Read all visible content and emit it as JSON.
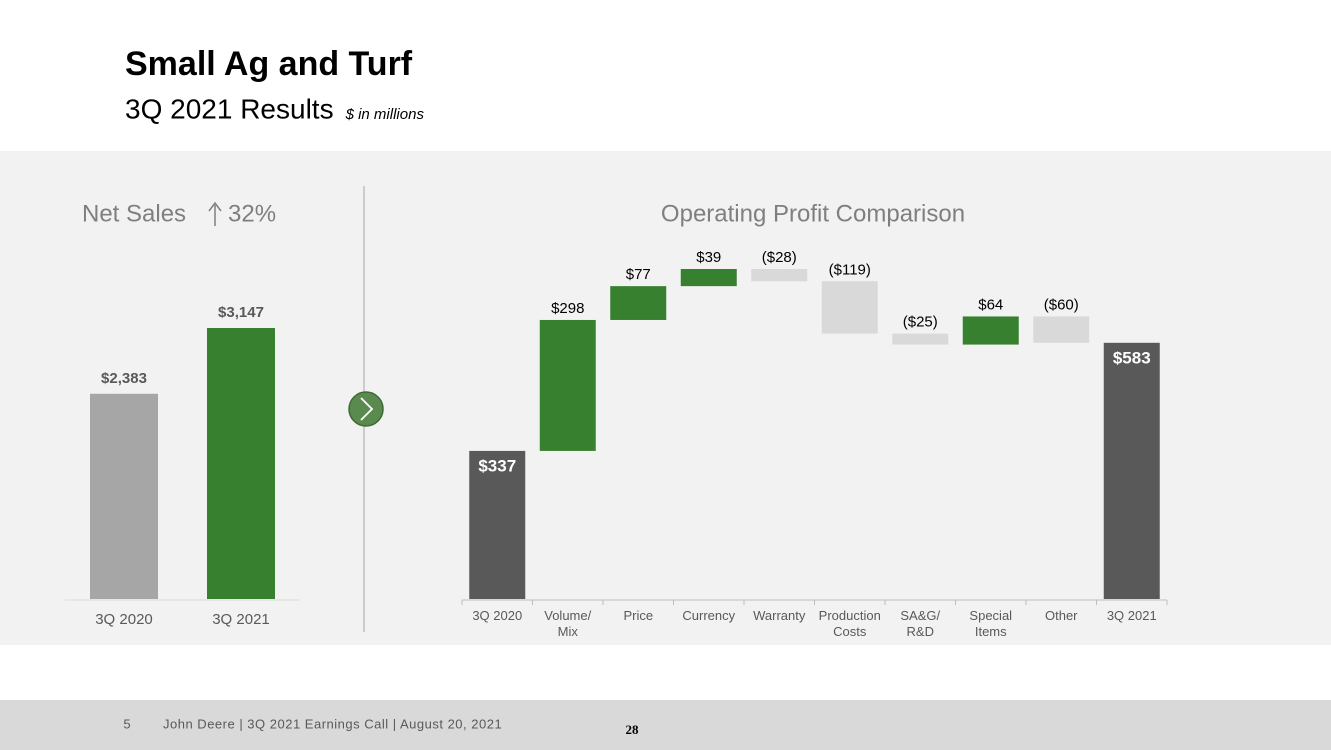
{
  "header": {
    "title": "Small Ag and Turf",
    "subtitle": "3Q 2021 Results",
    "note": "$ in millions"
  },
  "chart_data": [
    {
      "type": "bar",
      "title": "Net Sales",
      "annotation": "32%",
      "categories": [
        "3Q 2020",
        "3Q 2021"
      ],
      "values": [
        2383,
        3147
      ],
      "value_labels": [
        "$2,383",
        "$3,147"
      ],
      "colors": [
        "#a6a6a6",
        "#37802f"
      ]
    },
    {
      "type": "waterfall",
      "title": "Operating Profit Comparison",
      "categories": [
        "3Q 2020",
        "Volume/ Mix",
        "Price",
        "Currency",
        "Warranty",
        "Production Costs",
        "SA&G/ R&D",
        "Special Items",
        "Other",
        "3Q 2021"
      ],
      "values": [
        337,
        298,
        77,
        39,
        -28,
        -119,
        -25,
        64,
        -60,
        583
      ],
      "value_labels": [
        "$337",
        "$298",
        "$77",
        "$39",
        "($28)",
        "($119)",
        "($25)",
        "$64",
        "($60)",
        "$583"
      ],
      "total_color": "#595959",
      "increase_color": "#37802f",
      "decrease_color": "#d9d9d9"
    }
  ],
  "footer": {
    "page": "5",
    "text": "John Deere | 3Q 2021 Earnings Call | August 20, 2021",
    "slide": "28"
  }
}
